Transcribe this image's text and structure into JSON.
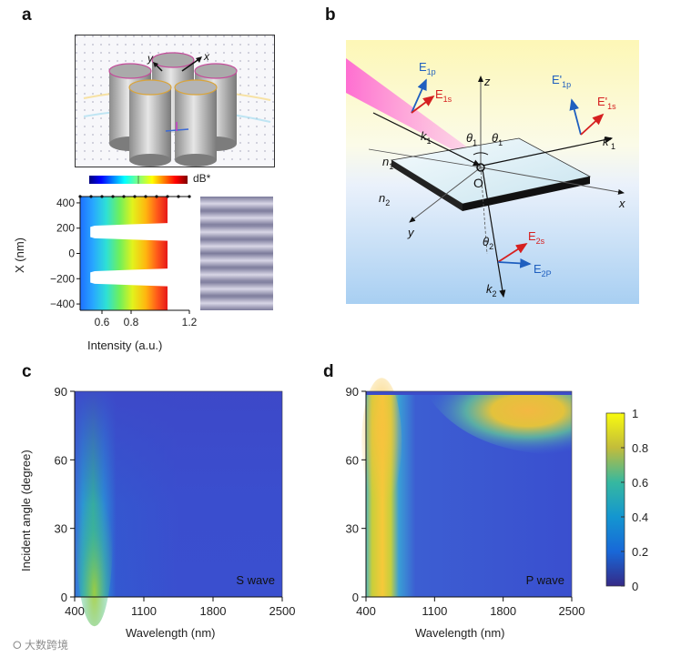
{
  "panels": {
    "a": "a",
    "b": "b",
    "c": "c",
    "d": "d"
  },
  "panel_a": {
    "colorbar_unit": "dB*",
    "profile_chart": {
      "ylabel": "X (nm)",
      "xlabel": "Intensity (a.u.)",
      "yticks": [
        "400",
        "200",
        "0",
        "−200",
        "−400"
      ],
      "xticks": [
        "0.6",
        "0.8",
        "1.2"
      ],
      "xlim": [
        0.45,
        1.2
      ],
      "ylim": [
        -450,
        450
      ],
      "xtick_values": [
        0.6,
        0.8,
        1.2
      ],
      "ytick_values": [
        400,
        200,
        0,
        -200,
        -400
      ]
    },
    "axis_labels_3d": {
      "x": "x",
      "y": "y"
    }
  },
  "panel_b": {
    "labels": {
      "E1p": "E",
      "E1p_sub": "1p",
      "E1s": "E",
      "E1s_sub": "1s",
      "Ep1p": "E'",
      "Ep1p_sub": "1p",
      "Ep1s": "E'",
      "Ep1s_sub": "1s",
      "k1": "k",
      "k1_sub": "1",
      "kp1": "k'",
      "kp1_sub": "1",
      "theta1a": "θ",
      "theta1a_sub": "1",
      "theta1b": "θ",
      "theta1b_sub": "1",
      "theta2": "θ",
      "theta2_sub": "2",
      "n1": "n",
      "n1_sub": "1",
      "n2": "n",
      "n2_sub": "2",
      "E2s": "E",
      "E2s_sub": "2s",
      "E2p": "E",
      "E2p_sub": "2P",
      "k2": "k",
      "k2_sub": "2",
      "origin": "O",
      "x": "x",
      "y": "y",
      "z": "z"
    },
    "colors": {
      "blue_field": "#1f5fbf",
      "red_field": "#d62020"
    }
  },
  "chart_data": [
    {
      "type": "heatmap",
      "panel": "c",
      "annotation": "S wave",
      "xlabel": "Wavelength (nm)",
      "ylabel": "Incident angle (degree)",
      "xlim": [
        400,
        2500
      ],
      "ylim": [
        0,
        90
      ],
      "xticks": [
        "400",
        "1100",
        "1800",
        "2500"
      ],
      "yticks": [
        "0",
        "30",
        "60",
        "90"
      ],
      "xtick_values": [
        400,
        1100,
        1800,
        2500
      ],
      "ytick_values": [
        0,
        30,
        60,
        90
      ],
      "description_points": [
        {
          "wavelength": 600,
          "angle": 10,
          "value": 0.75
        },
        {
          "wavelength": 600,
          "angle": 45,
          "value": 0.6
        },
        {
          "wavelength": 600,
          "angle": 80,
          "value": 0.35
        },
        {
          "wavelength": 1500,
          "angle": 45,
          "value": 0.2
        }
      ]
    },
    {
      "type": "heatmap",
      "panel": "d",
      "annotation": "P wave",
      "xlabel": "Wavelength (nm)",
      "xlim": [
        400,
        2500
      ],
      "ylim": [
        0,
        90
      ],
      "xticks": [
        "400",
        "1100",
        "1800",
        "2500"
      ],
      "yticks": [
        "0",
        "30",
        "60",
        "90"
      ],
      "xtick_values": [
        400,
        1100,
        1800,
        2500
      ],
      "ytick_values": [
        0,
        30,
        60,
        90
      ],
      "colorbar": {
        "range": [
          0,
          1
        ],
        "ticks": [
          "1",
          "0.8",
          "0.6",
          "0.4",
          "0.2",
          "0"
        ],
        "tick_values": [
          1,
          0.8,
          0.6,
          0.4,
          0.2,
          0
        ]
      },
      "description_points": [
        {
          "wavelength": 550,
          "angle": 70,
          "value": 0.85
        },
        {
          "wavelength": 550,
          "angle": 20,
          "value": 0.7
        },
        {
          "wavelength": 2000,
          "angle": 85,
          "value": 0.8
        },
        {
          "wavelength": 1500,
          "angle": 40,
          "value": 0.2
        }
      ]
    }
  ],
  "watermark": "大数跨境"
}
